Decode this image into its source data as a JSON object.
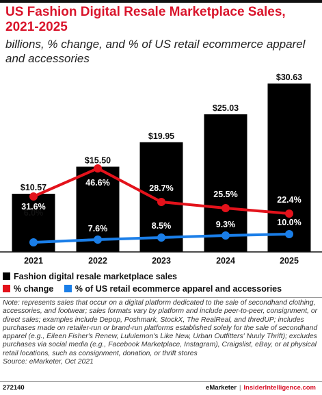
{
  "header": {
    "title": "US Fashion Digital Resale Marketplace Sales, 2021-2025",
    "subtitle": "billions, % change, and % of US retail ecommerce apparel and accessories"
  },
  "colors": {
    "bars": "#000000",
    "change_line": "#e3121b",
    "share_line": "#1a7ee8",
    "title": "#d9142b"
  },
  "chart_data": {
    "type": "bar",
    "categories": [
      "2021",
      "2022",
      "2023",
      "2024",
      "2025"
    ],
    "series": [
      {
        "name": "Fashion digital resale marketplace sales",
        "type": "bar",
        "values": [
          10.57,
          15.5,
          19.95,
          25.03,
          30.63
        ],
        "labels": [
          "$10.57",
          "$15.50",
          "$19.95",
          "$25.03",
          "$30.63"
        ]
      },
      {
        "name": "% change",
        "type": "line",
        "values": [
          31.6,
          46.6,
          28.7,
          25.5,
          22.4
        ],
        "labels": [
          "31.6%",
          "46.6%",
          "28.7%",
          "25.5%",
          "22.4%"
        ]
      },
      {
        "name": "% of US retail ecommerce apparel and accessories",
        "type": "line",
        "values": [
          6.0,
          7.6,
          8.5,
          9.3,
          10.0
        ],
        "labels": [
          "6.0%",
          "7.6%",
          "8.5%",
          "9.3%",
          "10.0%"
        ]
      }
    ],
    "bar_ylim": [
      0,
      30.63
    ],
    "grid": false,
    "legend_position": "bottom"
  },
  "note": "Note: represents sales that occur on a digital platform dedicated to the sale of secondhand clothing, accessories, and footwear; sales formats vary by platform and include peer-to-peer, consignment, or direct sales; examples include Depop, Poshmark, StockX, The RealReal, and thredUP; includes purchases made on retailer-run or brand-run platforms established solely for the sale of secondhand apparel (e.g., Eileen Fisher's Renew, Lululemon's Like New, Urban Outfitters' Nuuly Thrift); excludes purchases via social media (e.g., Facebook Marketplace, Instagram), Craigslist, eBay, or at physical retail locations, such as consignment, donation, or thrift stores",
  "source": "Source: eMarketer, Oct 2021",
  "footer": {
    "chart_id": "272140",
    "brand1": "eMarketer",
    "separator": "|",
    "brand2": "InsiderIntelligence.com"
  }
}
